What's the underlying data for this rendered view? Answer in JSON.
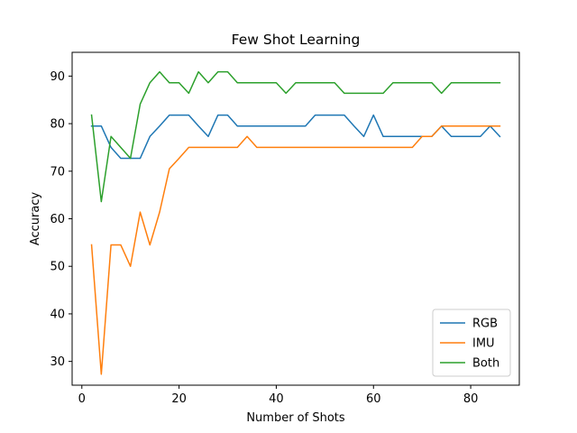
{
  "chart_data": {
    "type": "line",
    "title": "Few Shot Learning",
    "xlabel": "Number of Shots",
    "ylabel": "Accuracy",
    "xlim": [
      -2,
      90
    ],
    "ylim": [
      25,
      95
    ],
    "xticks": [
      0,
      20,
      40,
      60,
      80
    ],
    "yticks": [
      30,
      40,
      50,
      60,
      70,
      80,
      90
    ],
    "grid": false,
    "legend_position": "lower-right",
    "x": [
      2,
      4,
      6,
      8,
      10,
      12,
      14,
      16,
      18,
      20,
      22,
      24,
      26,
      28,
      30,
      32,
      34,
      36,
      38,
      40,
      42,
      44,
      46,
      48,
      50,
      52,
      54,
      56,
      58,
      60,
      62,
      64,
      66,
      68,
      70,
      72,
      74,
      76,
      78,
      80,
      82,
      84,
      86
    ],
    "series": [
      {
        "name": "RGB",
        "color": "#1f77b4",
        "values": [
          79.5,
          79.5,
          75.0,
          72.7,
          72.7,
          72.7,
          77.3,
          79.5,
          81.8,
          81.8,
          81.8,
          79.5,
          77.3,
          81.8,
          81.8,
          79.5,
          79.5,
          79.5,
          79.5,
          79.5,
          79.5,
          79.5,
          79.5,
          81.8,
          81.8,
          81.8,
          81.8,
          79.5,
          77.3,
          81.8,
          77.3,
          77.3,
          77.3,
          77.3,
          77.3,
          77.3,
          79.5,
          77.3,
          77.3,
          77.3,
          77.3,
          79.5,
          77.3
        ]
      },
      {
        "name": "IMU",
        "color": "#ff7f0e",
        "values": [
          54.5,
          27.3,
          54.5,
          54.5,
          50.0,
          61.4,
          54.5,
          61.4,
          70.5,
          72.7,
          75.0,
          75.0,
          75.0,
          75.0,
          75.0,
          75.0,
          77.3,
          75.0,
          75.0,
          75.0,
          75.0,
          75.0,
          75.0,
          75.0,
          75.0,
          75.0,
          75.0,
          75.0,
          75.0,
          75.0,
          75.0,
          75.0,
          75.0,
          75.0,
          77.3,
          77.3,
          79.5,
          79.5,
          79.5,
          79.5,
          79.5,
          79.5,
          79.5
        ]
      },
      {
        "name": "Both",
        "color": "#2ca02c",
        "values": [
          81.8,
          63.6,
          77.3,
          75.0,
          72.7,
          84.1,
          88.6,
          90.9,
          88.6,
          88.6,
          86.4,
          90.9,
          88.6,
          90.9,
          90.9,
          88.6,
          88.6,
          88.6,
          88.6,
          88.6,
          86.4,
          88.6,
          88.6,
          88.6,
          88.6,
          88.6,
          86.4,
          86.4,
          86.4,
          86.4,
          86.4,
          88.6,
          88.6,
          88.6,
          88.6,
          88.6,
          86.4,
          88.6,
          88.6,
          88.6,
          88.6,
          88.6,
          88.6
        ]
      }
    ]
  }
}
